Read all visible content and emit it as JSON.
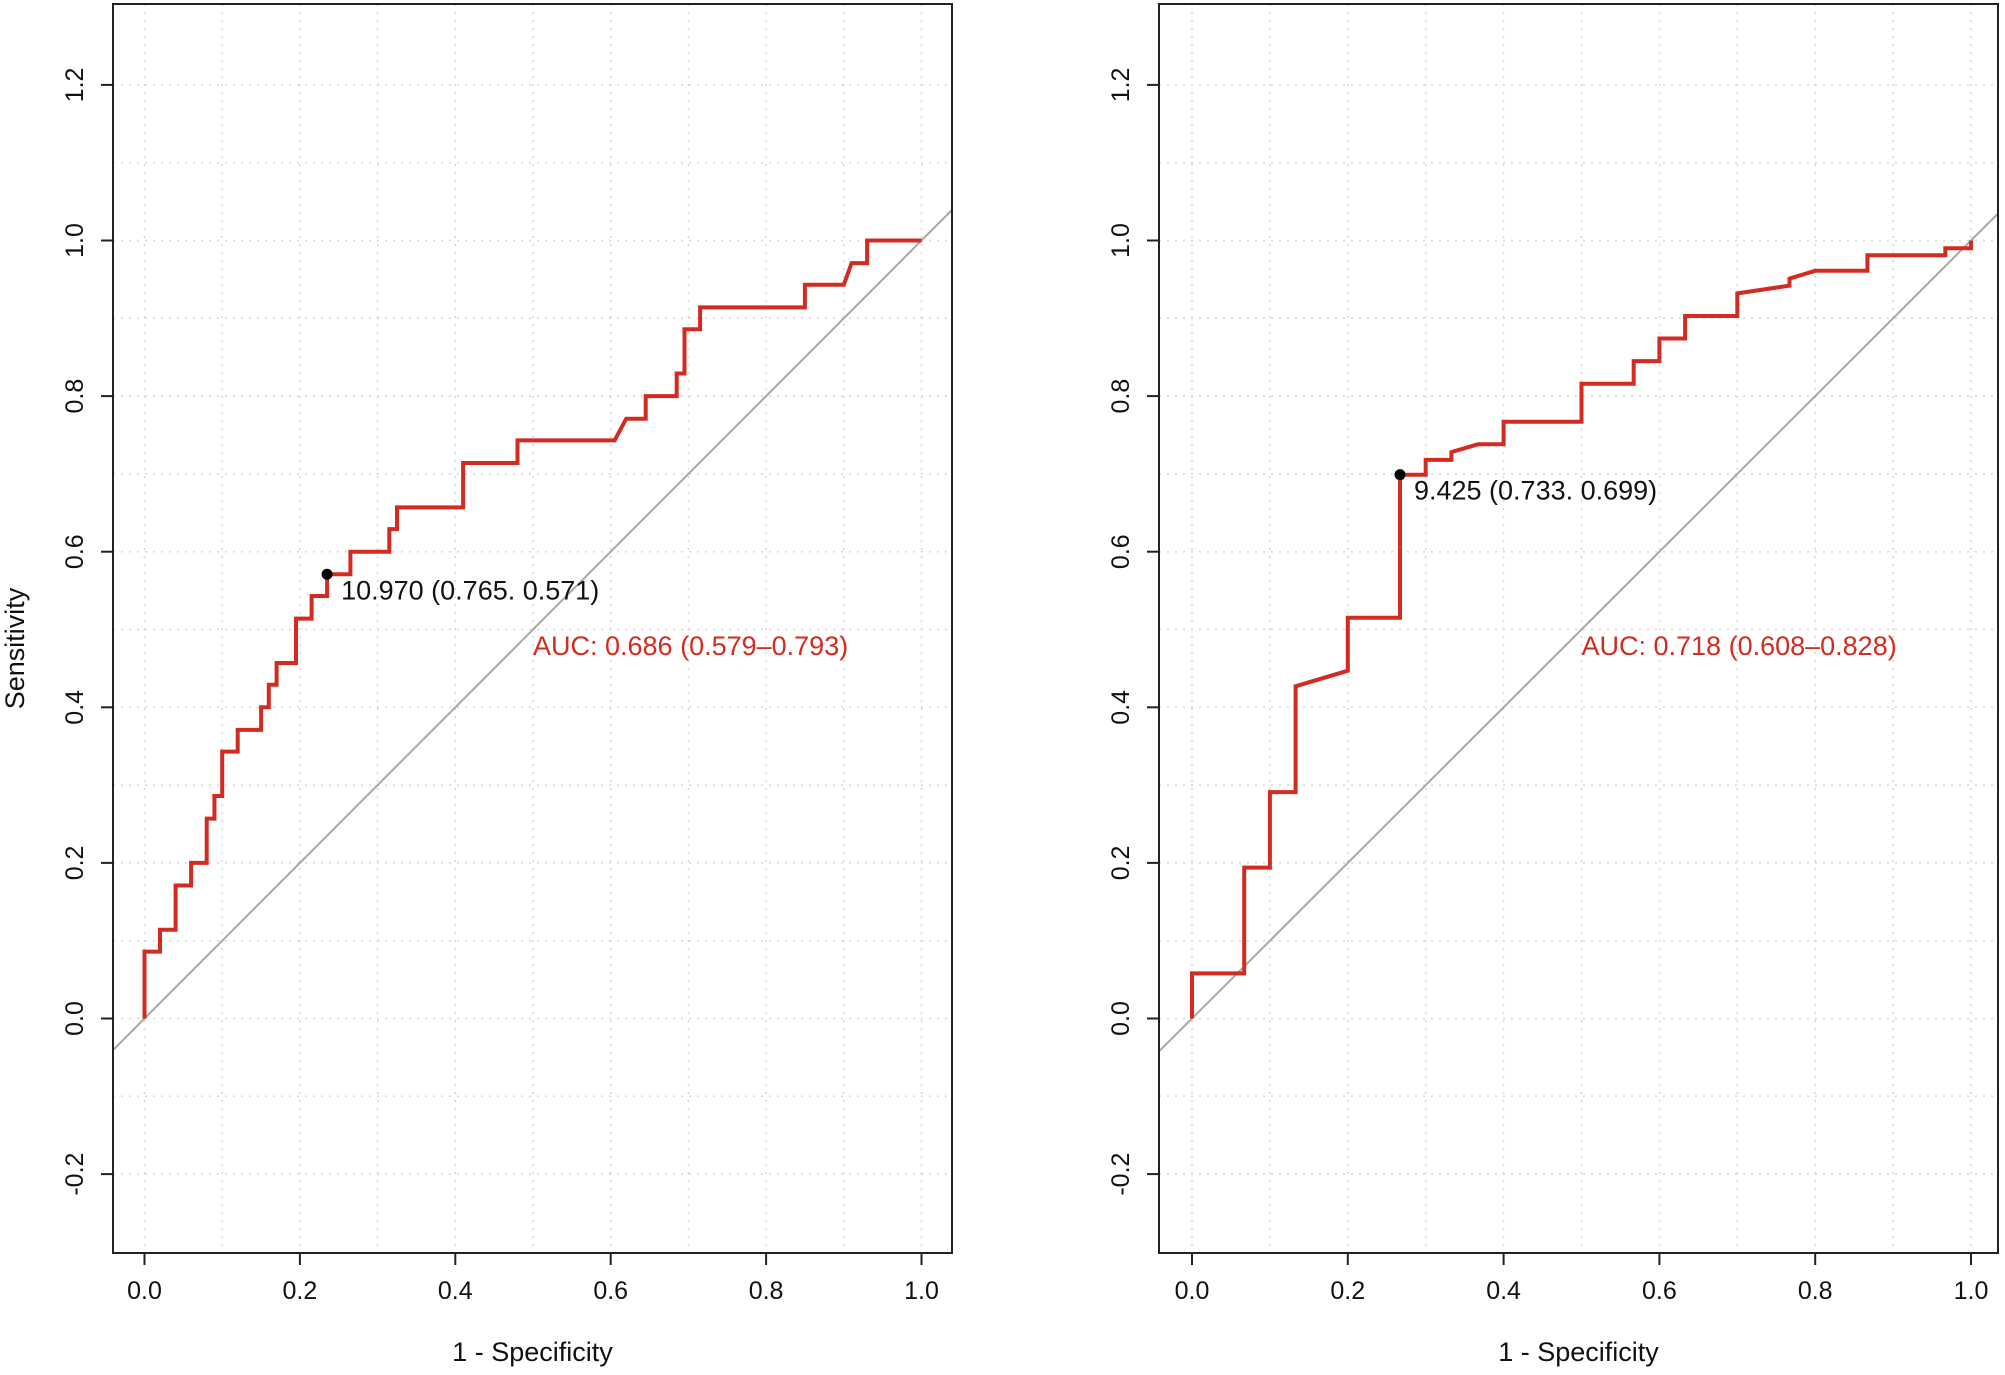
{
  "colors": {
    "roc": "#d22b22",
    "diagonal": "#a8a8a8",
    "grid": "#d6d6d6",
    "frame": "#222222",
    "point": "#000000"
  },
  "chart_data": [
    {
      "type": "line",
      "title": "",
      "xlabel": "1 - Specificity",
      "ylabel": "Sensitivity",
      "xlim": [
        0,
        1
      ],
      "ylim": [
        -0.2,
        1.2
      ],
      "x_ticks": [
        "0.0",
        "0.2",
        "0.4",
        "0.6",
        "0.8",
        "1.0"
      ],
      "y_ticks": [
        "-0.2",
        "0.0",
        "0.2",
        "0.4",
        "0.6",
        "0.8",
        "1.0",
        "1.2"
      ],
      "grid": true,
      "reference_line": [
        [
          0,
          0
        ],
        [
          1,
          1
        ]
      ],
      "roc_curve": [
        [
          0,
          0
        ],
        [
          0,
          0.086
        ],
        [
          0.02,
          0.086
        ],
        [
          0.02,
          0.114
        ],
        [
          0.04,
          0.114
        ],
        [
          0.04,
          0.171
        ],
        [
          0.06,
          0.171
        ],
        [
          0.06,
          0.2
        ],
        [
          0.08,
          0.2
        ],
        [
          0.08,
          0.257
        ],
        [
          0.09,
          0.257
        ],
        [
          0.09,
          0.286
        ],
        [
          0.1,
          0.286
        ],
        [
          0.1,
          0.343
        ],
        [
          0.12,
          0.343
        ],
        [
          0.12,
          0.371
        ],
        [
          0.15,
          0.371
        ],
        [
          0.15,
          0.4
        ],
        [
          0.16,
          0.4
        ],
        [
          0.16,
          0.429
        ],
        [
          0.17,
          0.429
        ],
        [
          0.17,
          0.457
        ],
        [
          0.195,
          0.457
        ],
        [
          0.195,
          0.514
        ],
        [
          0.215,
          0.514
        ],
        [
          0.215,
          0.543
        ],
        [
          0.235,
          0.543
        ],
        [
          0.235,
          0.571
        ],
        [
          0.265,
          0.571
        ],
        [
          0.265,
          0.6
        ],
        [
          0.315,
          0.6
        ],
        [
          0.315,
          0.629
        ],
        [
          0.325,
          0.629
        ],
        [
          0.325,
          0.657
        ],
        [
          0.41,
          0.657
        ],
        [
          0.41,
          0.714
        ],
        [
          0.48,
          0.714
        ],
        [
          0.48,
          0.743
        ],
        [
          0.605,
          0.743
        ],
        [
          0.62,
          0.771
        ],
        [
          0.645,
          0.771
        ],
        [
          0.645,
          0.8
        ],
        [
          0.685,
          0.8
        ],
        [
          0.685,
          0.829
        ],
        [
          0.695,
          0.829
        ],
        [
          0.695,
          0.886
        ],
        [
          0.715,
          0.886
        ],
        [
          0.715,
          0.914
        ],
        [
          0.85,
          0.914
        ],
        [
          0.85,
          0.943
        ],
        [
          0.9,
          0.943
        ],
        [
          0.91,
          0.971
        ],
        [
          0.93,
          0.971
        ],
        [
          0.93,
          1.0
        ],
        [
          1.0,
          1.0
        ]
      ],
      "cutoff_point": [
        0.235,
        0.571
      ],
      "cutoff_label": "10.970 (0.765. 0.571)",
      "auc_label": "AUC: 0.686 (0.579–0.793)"
    },
    {
      "type": "line",
      "title": "",
      "xlabel": "1 - Specificity",
      "ylabel": "",
      "xlim": [
        0,
        1
      ],
      "ylim": [
        -0.2,
        1.2
      ],
      "x_ticks": [
        "0.0",
        "0.2",
        "0.4",
        "0.6",
        "0.8",
        "1.0"
      ],
      "y_ticks": [
        "-0.2",
        "0.0",
        "0.2",
        "0.4",
        "0.6",
        "0.8",
        "1.0",
        "1.2"
      ],
      "grid": true,
      "reference_line": [
        [
          0,
          0
        ],
        [
          1,
          1
        ]
      ],
      "roc_curve": [
        [
          0,
          0
        ],
        [
          0,
          0.058
        ],
        [
          0.067,
          0.058
        ],
        [
          0.067,
          0.194
        ],
        [
          0.1,
          0.194
        ],
        [
          0.1,
          0.291
        ],
        [
          0.133,
          0.291
        ],
        [
          0.133,
          0.427
        ],
        [
          0.2,
          0.447
        ],
        [
          0.2,
          0.515
        ],
        [
          0.267,
          0.515
        ],
        [
          0.267,
          0.699
        ],
        [
          0.3,
          0.699
        ],
        [
          0.3,
          0.718
        ],
        [
          0.333,
          0.718
        ],
        [
          0.333,
          0.728
        ],
        [
          0.367,
          0.738
        ],
        [
          0.4,
          0.738
        ],
        [
          0.4,
          0.767
        ],
        [
          0.5,
          0.767
        ],
        [
          0.5,
          0.816
        ],
        [
          0.567,
          0.816
        ],
        [
          0.567,
          0.845
        ],
        [
          0.6,
          0.845
        ],
        [
          0.6,
          0.874
        ],
        [
          0.633,
          0.874
        ],
        [
          0.633,
          0.903
        ],
        [
          0.7,
          0.903
        ],
        [
          0.7,
          0.932
        ],
        [
          0.767,
          0.942
        ],
        [
          0.767,
          0.951
        ],
        [
          0.8,
          0.961
        ],
        [
          0.867,
          0.961
        ],
        [
          0.867,
          0.981
        ],
        [
          0.967,
          0.981
        ],
        [
          0.967,
          0.99
        ],
        [
          1.0,
          0.99
        ],
        [
          1.0,
          1.0
        ]
      ],
      "cutoff_point": [
        0.267,
        0.699
      ],
      "cutoff_label": "9.425 (0.733. 0.699)",
      "auc_label": "AUC: 0.718 (0.608–0.828)"
    }
  ]
}
